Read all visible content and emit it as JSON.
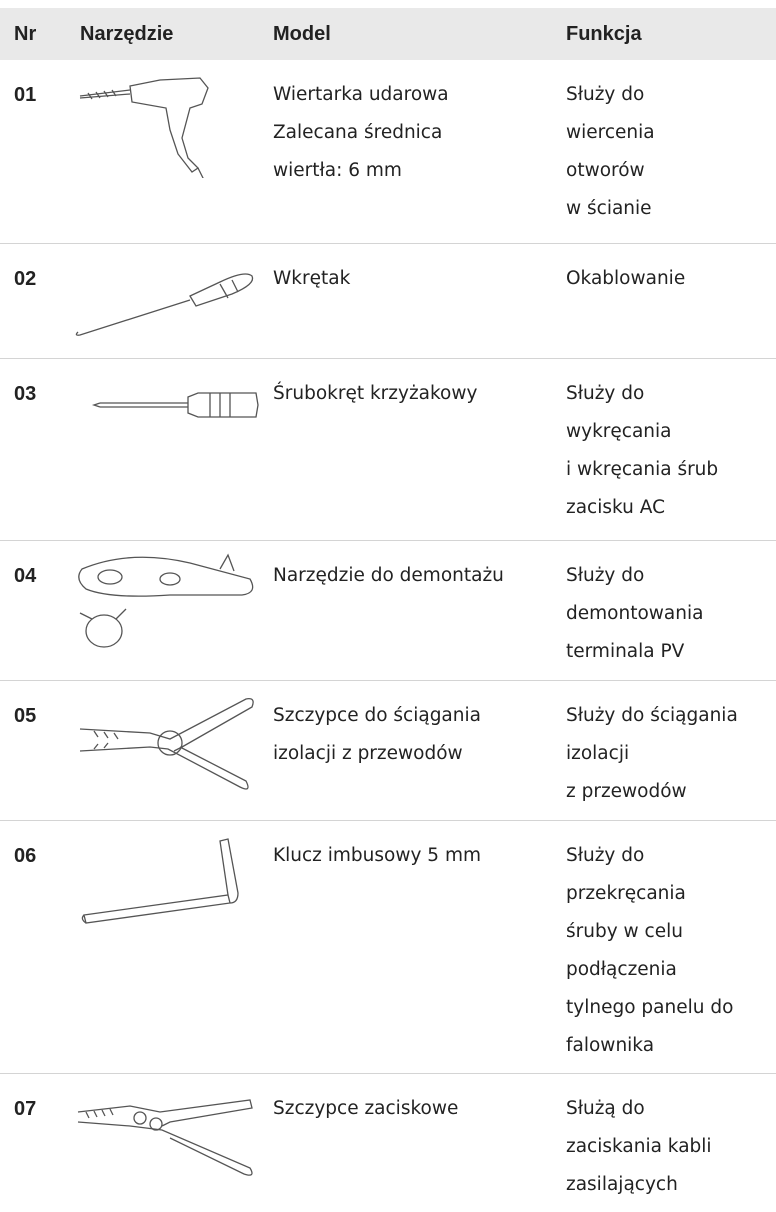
{
  "table": {
    "header": [
      "Nr",
      "Narzędzie",
      "Model",
      "Funkcja"
    ],
    "rows": [
      {
        "nr": "01",
        "model": [
          "Wiertarka udarowa",
          "Zalecana średnica",
          "wiertła: 6 mm"
        ],
        "function": [
          "Służy do",
          "wiercenia",
          "otworów",
          "w ścianie"
        ]
      },
      {
        "nr": "02",
        "model": [
          "Wkrętak"
        ],
        "function": [
          "Okablowanie"
        ]
      },
      {
        "nr": "03",
        "model": [
          "Śrubokręt krzyżakowy"
        ],
        "function": [
          "Służy do",
          "wykręcania",
          "i wkręcania śrub",
          "zacisku AC"
        ]
      },
      {
        "nr": "04",
        "model": [
          "Narzędzie do demontażu"
        ],
        "function": [
          "Służy do",
          "demontowania",
          "terminala PV"
        ]
      },
      {
        "nr": "05",
        "model": [
          "Szczypce do ściągania",
          "izolacji z przewodów"
        ],
        "function": [
          "Służy do ściągania",
          "izolacji",
          "z przewodów"
        ]
      },
      {
        "nr": "06",
        "model": [
          "Klucz imbusowy 5 mm"
        ],
        "function": [
          "Służy do",
          "przekręcania",
          "śruby w celu",
          "podłączenia",
          "tylnego panelu do",
          "falownika"
        ]
      },
      {
        "nr": "07",
        "model": [
          "Szczypce zaciskowe"
        ],
        "function": [
          "Służą do",
          "zaciskania kabli",
          "zasilających"
        ]
      }
    ]
  }
}
